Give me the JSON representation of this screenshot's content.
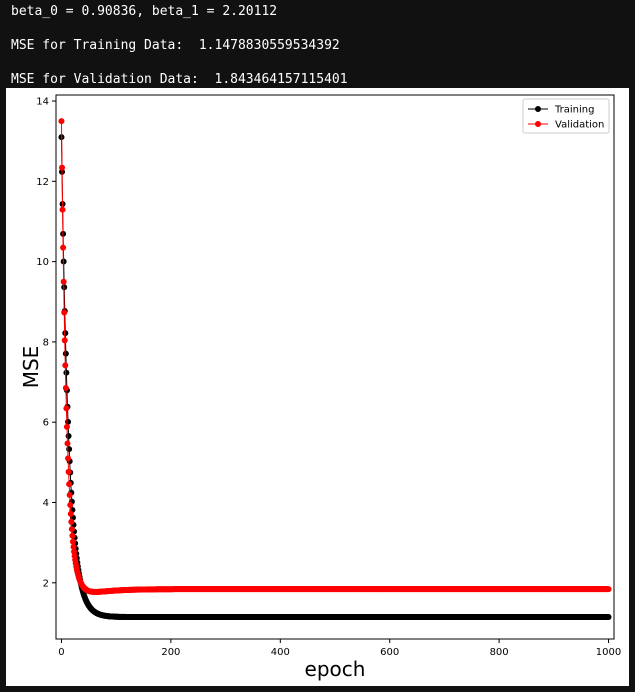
{
  "output": {
    "line1": "beta_0 = 0.90836, beta_1 = 2.20112",
    "line2": "MSE for Training Data:  1.1478830559534392",
    "line3": "MSE for Validation Data:  1.843464157115401"
  },
  "chart_data": {
    "type": "line",
    "title": "",
    "xlabel": "epoch",
    "ylabel": "MSE",
    "xlim": [
      -10,
      1010
    ],
    "ylim": [
      0.6,
      14.15
    ],
    "xticks": [
      0,
      200,
      400,
      600,
      800,
      1000
    ],
    "yticks": [
      2,
      4,
      6,
      8,
      10,
      12,
      14
    ],
    "grid": false,
    "legend_position": "top-right",
    "epochs": 1000,
    "series": [
      {
        "name": "Training",
        "color": "#000000",
        "marker": "circle",
        "start": 13.1,
        "final": 1.1478830559534392,
        "decay": 0.075,
        "shape": "exponential-decay"
      },
      {
        "name": "Validation",
        "color": "#ff0000",
        "marker": "circle",
        "start": 13.5,
        "final": 1.843464157115401,
        "decay": 0.1,
        "dip": {
          "min": 1.65,
          "at_epoch": 50
        },
        "shape": "exponential-decay-with-dip"
      }
    ]
  }
}
